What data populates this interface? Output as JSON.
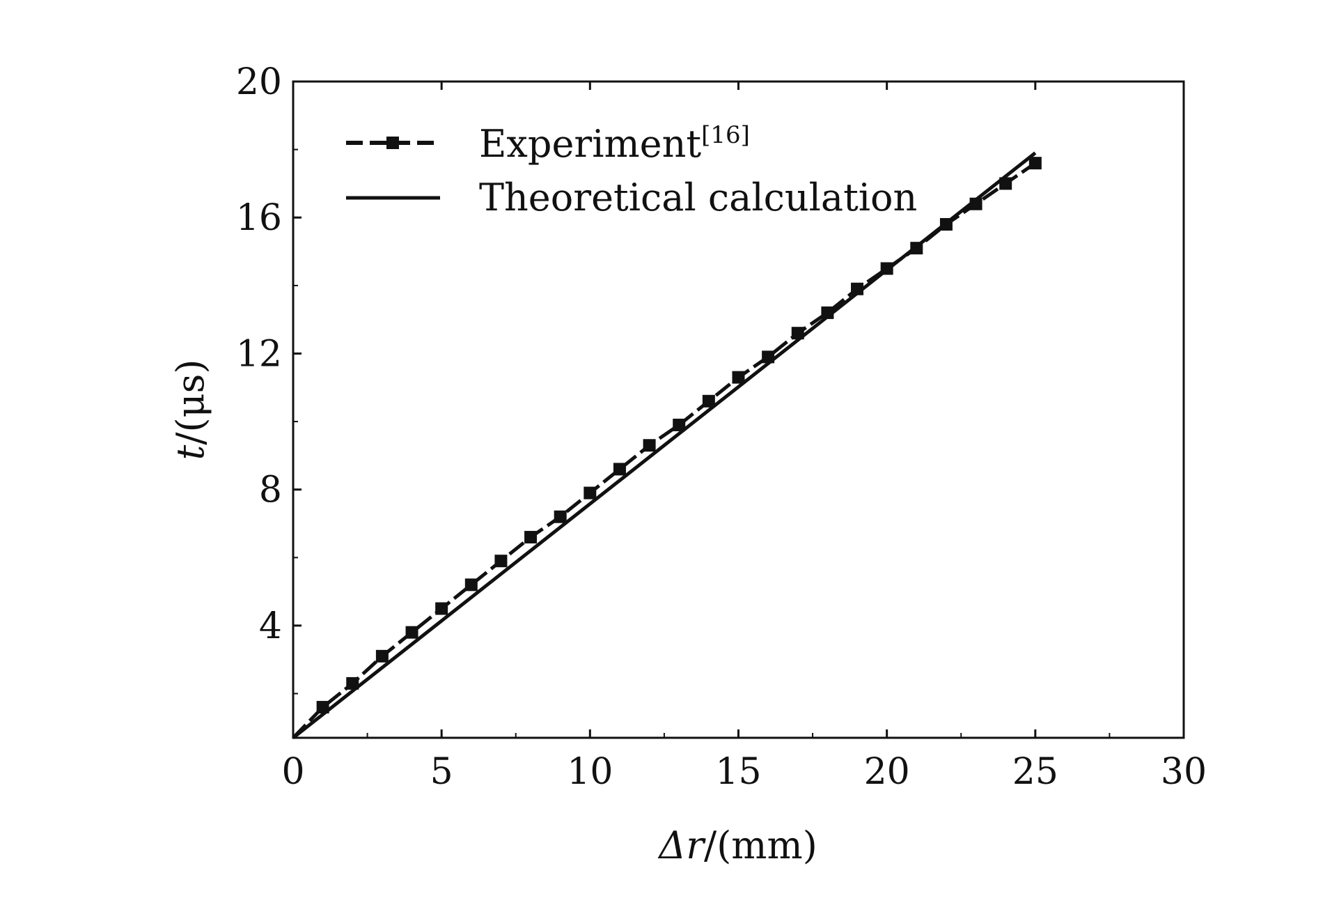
{
  "chart_data": {
    "type": "line",
    "xlabel_symbol": "Δr",
    "xlabel_unit": "/(mm)",
    "ylabel_symbol": "t",
    "ylabel_unit": "/(μs)",
    "xlim": [
      0,
      30
    ],
    "ylim": [
      0.7,
      20
    ],
    "xticks": [
      0,
      5,
      10,
      15,
      20,
      25,
      30
    ],
    "xtick_labels": [
      "0",
      "5",
      "10",
      "15",
      "20",
      "25",
      "30"
    ],
    "yticks": [
      4,
      8,
      12,
      16,
      20
    ],
    "ytick_labels": [
      "4",
      "8",
      "12",
      "16",
      "20"
    ],
    "grid": false,
    "legend_position": "top-left",
    "series": [
      {
        "name": "Experiment",
        "name_superscript": "[16]",
        "style": "dashed-square-markers",
        "x": [
          0,
          1,
          2,
          3,
          4,
          5,
          6,
          7,
          8,
          9,
          10,
          11,
          12,
          13,
          14,
          15,
          16,
          17,
          18,
          19,
          20,
          21,
          22,
          23,
          24,
          25
        ],
        "y": [
          0.7,
          1.6,
          2.3,
          3.1,
          3.8,
          4.5,
          5.2,
          5.9,
          6.6,
          7.2,
          7.9,
          8.6,
          9.3,
          9.9,
          10.6,
          11.3,
          11.9,
          12.6,
          13.2,
          13.9,
          14.5,
          15.1,
          15.8,
          16.4,
          17.0,
          17.6
        ]
      },
      {
        "name": "Theoretical calculation",
        "style": "solid",
        "x": [
          0,
          25
        ],
        "y": [
          0.7,
          17.9
        ]
      }
    ]
  }
}
